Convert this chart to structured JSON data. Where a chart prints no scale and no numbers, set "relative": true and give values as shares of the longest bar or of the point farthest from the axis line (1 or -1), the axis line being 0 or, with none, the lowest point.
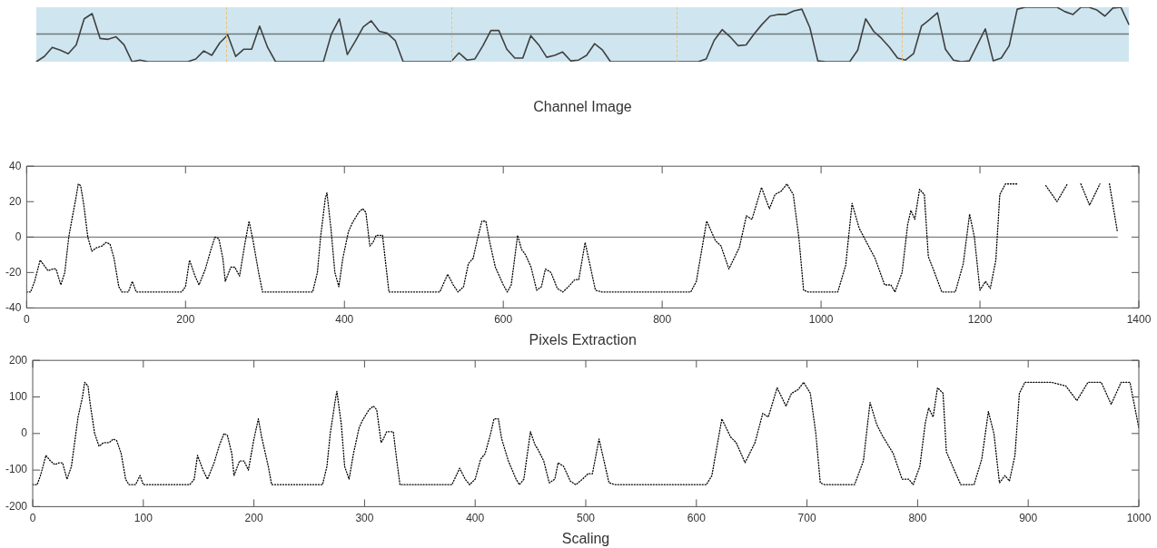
{
  "chart_data": [
    {
      "type": "line",
      "relative": true,
      "xlabel": "Channel Image",
      "categories": [
        null,
        null,
        null,
        null,
        null,
        null,
        null,
        null,
        null,
        null,
        null,
        null,
        null,
        null,
        null,
        null,
        null,
        null,
        null,
        null,
        null,
        null,
        null,
        null,
        null,
        null,
        null,
        null,
        null,
        null,
        null,
        null,
        null,
        null,
        null,
        null,
        null,
        null,
        null,
        null,
        null,
        null,
        null,
        null,
        null,
        null,
        null,
        null,
        null,
        null,
        null,
        null,
        null,
        null,
        null,
        null,
        null,
        null,
        null,
        null,
        null,
        null,
        null,
        null,
        null,
        null,
        null,
        null,
        null,
        null,
        null,
        null,
        null,
        null,
        null,
        null,
        null,
        null,
        null,
        null,
        null,
        null,
        null,
        null,
        null,
        null,
        null,
        null,
        null,
        null,
        null,
        null,
        null,
        null,
        null,
        null,
        null,
        null,
        null,
        null,
        null,
        null,
        null,
        null,
        null,
        null,
        null,
        null,
        null,
        null,
        null,
        null,
        null,
        null,
        null,
        null,
        null,
        null,
        null,
        null,
        null,
        null,
        null,
        null,
        null,
        null,
        null,
        null,
        null,
        null,
        null,
        null,
        null,
        null,
        null,
        null,
        null,
        null
      ],
      "series": [
        {
          "color": "#404040",
          "values": [
            -1,
            -0.81,
            -0.48,
            -0.58,
            -0.71,
            -0.39,
            0.55,
            0.74,
            -0.16,
            -0.19,
            -0.1,
            -0.39,
            -1,
            -0.94,
            -1,
            -1,
            -1,
            -1,
            -1,
            -1,
            -0.9,
            -0.61,
            -0.77,
            -0.32,
            -0.03,
            -0.81,
            -0.55,
            -0.55,
            0.29,
            -0.48,
            -1,
            -1,
            -1,
            -1,
            -1,
            -1,
            -1,
            0,
            0.55,
            -0.74,
            -0.26,
            0.26,
            0.48,
            0.1,
            0.03,
            -0.23,
            -1,
            -1,
            -1,
            -1,
            -1,
            -1,
            -1,
            -0.68,
            -0.94,
            -0.9,
            -0.42,
            0.13,
            0.13,
            -0.55,
            -0.87,
            -0.87,
            -0.06,
            -0.39,
            -0.84,
            -0.77,
            -0.65,
            -0.97,
            -0.94,
            -0.77,
            -0.35,
            -0.58,
            -1,
            -1,
            -1,
            -1,
            -1,
            -1,
            -1,
            -1,
            -1,
            -1,
            -1,
            -1,
            -0.9,
            -0.23,
            0.16,
            -0.1,
            -0.42,
            -0.39,
            0,
            0.35,
            0.65,
            0.71,
            0.71,
            0.84,
            0.9,
            0.23,
            -0.97,
            -1,
            -1,
            -1,
            -1,
            -0.58,
            0.55,
            0.1,
            -0.16,
            -0.48,
            -0.87,
            -0.94,
            -0.71,
            0.29,
            0.52,
            0.77,
            -0.55,
            -0.94,
            -1,
            -0.97,
            -0.39,
            0.19,
            -0.97,
            -0.87,
            -0.42,
            0.9,
            0.97,
            0.97,
            0.97,
            0.97,
            0.97,
            0.81,
            0.71,
            0.97,
            0.97,
            0.87,
            0.65,
            0.94,
            0.97,
            0.35
          ]
        }
      ]
    },
    {
      "type": "line",
      "xlabel": "Pixels Extraction",
      "xlim": [
        0,
        1400
      ],
      "ylim": [
        -40,
        40
      ],
      "xticks": [
        0,
        200,
        400,
        600,
        800,
        1000,
        1200,
        1400
      ],
      "yticks": [
        -40,
        -20,
        0,
        20,
        40
      ],
      "marker": "none",
      "line_style": "dotted",
      "series": [
        {
          "color": "#000000",
          "x": [
            0,
            5,
            10,
            17,
            22,
            27,
            33,
            37,
            43,
            48,
            53,
            57,
            62,
            65,
            68,
            72,
            77,
            82,
            88,
            95,
            100,
            105,
            110,
            116,
            120,
            128,
            133,
            138,
            195,
            200,
            205,
            212,
            217,
            225,
            232,
            237,
            242,
            247,
            250,
            257,
            262,
            268,
            275,
            280,
            285,
            292,
            297,
            360,
            366,
            370,
            376,
            378,
            383,
            388,
            393,
            398,
            405,
            410,
            418,
            423,
            427,
            432,
            436,
            440,
            448,
            452,
            456,
            520,
            530,
            537,
            543,
            550,
            556,
            562,
            568,
            573,
            578,
            583,
            590,
            600,
            605,
            610,
            614,
            618,
            623,
            628,
            635,
            642,
            648,
            653,
            660,
            668,
            675,
            682,
            690,
            695,
            703,
            716,
            724,
            836,
            843,
            856,
            867,
            874,
            884,
            897,
            906,
            913,
            925,
            935,
            942,
            950,
            957,
            965,
            972,
            978,
            984,
            1021,
            1031,
            1039,
            1048,
            1055,
            1068,
            1080,
            1088,
            1093,
            1102,
            1109,
            1113,
            1118,
            1124,
            1130,
            1135,
            1142,
            1152,
            1169,
            1179,
            1187,
            1193,
            1200,
            1207,
            1213,
            1220,
            1225,
            1232,
            1247,
            1265,
            1283,
            1297,
            1310,
            1318,
            1327,
            1338,
            1351,
            1357,
            1363,
            1373
          ],
          "values": [
            -31,
            -31,
            -25,
            -13,
            -16,
            -19,
            -18,
            -18,
            -27,
            -20,
            0,
            10,
            22,
            30,
            29,
            18,
            0,
            -8,
            -6,
            -5,
            -3,
            -4,
            -12,
            -28,
            -31,
            -31,
            -25,
            -31,
            -31,
            -28,
            -13,
            -22,
            -27,
            -18,
            -7,
            0,
            -1,
            -12,
            -25,
            -17,
            -17,
            -22,
            -3,
            9,
            -2,
            -20,
            -31,
            -31,
            -20,
            0,
            22,
            25,
            5,
            -20,
            -28,
            -12,
            3,
            8,
            14,
            16,
            14,
            -5,
            -3,
            1,
            1,
            -15,
            -31,
            -31,
            -21,
            -27,
            -31,
            -28,
            -15,
            -12,
            0,
            9,
            9,
            -3,
            -17,
            -27,
            -31,
            -27,
            -13,
            1,
            -7,
            -10,
            -17,
            -30,
            -28,
            -18,
            -20,
            -29,
            -31,
            -28,
            -24,
            -24,
            -3,
            -30,
            -31,
            -31,
            -25,
            9,
            -2,
            -5,
            -18,
            -6,
            12,
            10,
            28,
            16,
            24,
            26,
            30,
            24,
            0,
            -30,
            -31,
            -31,
            -16,
            19,
            5,
            -1,
            -12,
            -27,
            -27,
            -31,
            -20,
            7,
            15,
            10,
            27,
            24,
            -11,
            -19,
            -31,
            -31,
            -15,
            13,
            0,
            -30,
            -25,
            -29,
            -13,
            24,
            30,
            30,
            null,
            29,
            20,
            30,
            null,
            30,
            18,
            30,
            null,
            30,
            3
          ]
        },
        {
          "color": "#808080",
          "line_style": "solid",
          "x": [
            0,
            1373
          ],
          "values": [
            0,
            0
          ]
        }
      ]
    },
    {
      "type": "line",
      "xlabel": "Scaling",
      "xlim": [
        0,
        1000
      ],
      "ylim": [
        -200,
        200
      ],
      "xticks": [
        0,
        100,
        200,
        300,
        400,
        500,
        600,
        700,
        800,
        900,
        1000
      ],
      "yticks": [
        -200,
        -100,
        0,
        100,
        200
      ],
      "marker": "none",
      "line_style": "dotted",
      "series": [
        {
          "color": "#000000",
          "x": [
            0,
            4,
            7,
            12,
            16,
            20,
            24,
            27,
            31,
            35,
            39,
            41,
            45,
            47,
            50,
            52,
            56,
            60,
            64,
            69,
            73,
            76,
            80,
            84,
            87,
            93,
            97,
            100,
            142,
            146,
            149,
            154,
            158,
            164,
            169,
            173,
            176,
            180,
            182,
            187,
            191,
            195,
            200,
            204,
            207,
            213,
            216,
            262,
            266,
            269,
            274,
            275,
            279,
            282,
            286,
            290,
            295,
            298,
            304,
            308,
            311,
            315,
            317,
            320,
            326,
            329,
            332,
            379,
            386,
            391,
            395,
            400,
            405,
            409,
            414,
            417,
            421,
            424,
            430,
            437,
            440,
            444,
            447,
            450,
            454,
            457,
            462,
            467,
            472,
            475,
            480,
            486,
            491,
            497,
            502,
            506,
            512,
            521,
            527,
            609,
            614,
            623,
            631,
            636,
            644,
            653,
            660,
            665,
            673,
            681,
            686,
            692,
            697,
            703,
            708,
            712,
            716,
            743,
            751,
            757,
            763,
            768,
            778,
            786,
            792,
            796,
            802,
            807,
            810,
            814,
            818,
            823,
            826,
            831,
            839,
            851,
            858,
            864,
            869,
            874,
            879,
            883,
            888,
            892,
            897,
            908,
            921,
            934,
            944,
            954,
            960,
            966,
            975,
            984,
            988,
            992,
            1000
          ],
          "values": [
            -140,
            -140,
            -115,
            -60,
            -75,
            -85,
            -80,
            -80,
            -125,
            -90,
            0,
            45,
            100,
            140,
            130,
            80,
            0,
            -35,
            -25,
            -25,
            -15,
            -20,
            -55,
            -125,
            -140,
            -140,
            -115,
            -140,
            -140,
            -125,
            -60,
            -100,
            -125,
            -80,
            -30,
            0,
            -5,
            -55,
            -115,
            -75,
            -75,
            -100,
            -15,
            40,
            -10,
            -90,
            -140,
            -140,
            -90,
            0,
            100,
            115,
            25,
            -90,
            -125,
            -55,
            15,
            35,
            65,
            75,
            65,
            -25,
            -15,
            5,
            5,
            -70,
            -140,
            -140,
            -95,
            -125,
            -140,
            -125,
            -70,
            -55,
            0,
            40,
            40,
            -15,
            -75,
            -125,
            -140,
            -125,
            -60,
            5,
            -30,
            -45,
            -75,
            -135,
            -125,
            -80,
            -90,
            -130,
            -140,
            -125,
            -110,
            -110,
            -15,
            -135,
            -140,
            -140,
            -115,
            40,
            -10,
            -25,
            -80,
            -25,
            55,
            45,
            125,
            75,
            110,
            120,
            140,
            110,
            0,
            -135,
            -140,
            -140,
            -75,
            85,
            25,
            -5,
            -55,
            -125,
            -125,
            -140,
            -90,
            30,
            70,
            45,
            125,
            110,
            -50,
            -85,
            -140,
            -140,
            -70,
            60,
            0,
            -135,
            -115,
            -130,
            -60,
            110,
            140,
            140,
            140,
            130,
            90,
            140,
            140,
            140,
            80,
            140,
            140,
            140,
            15
          ]
        }
      ]
    }
  ]
}
